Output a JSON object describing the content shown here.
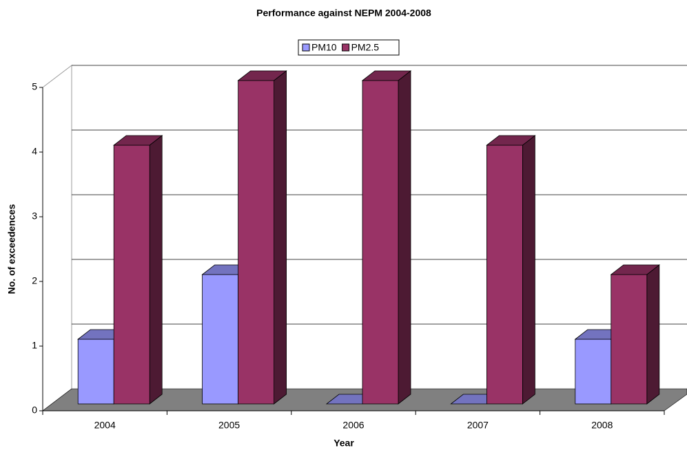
{
  "chart_data": {
    "type": "bar3d",
    "title": "Performance against NEPM 2004-2008",
    "x_label": "Year",
    "y_label": "No. of exceedences",
    "categories": [
      "2004",
      "2005",
      "2006",
      "2007",
      "2008"
    ],
    "series": [
      {
        "name": "PM10",
        "color": "#9999ff",
        "values": [
          1,
          2,
          0,
          0,
          1
        ]
      },
      {
        "name": "PM2.5",
        "color": "#993366",
        "values": [
          4,
          5,
          5,
          4,
          2
        ]
      }
    ],
    "ylim": [
      0,
      5
    ],
    "yticks": [
      0,
      1,
      2,
      3,
      4,
      5
    ],
    "grid": true,
    "legend": "top"
  }
}
